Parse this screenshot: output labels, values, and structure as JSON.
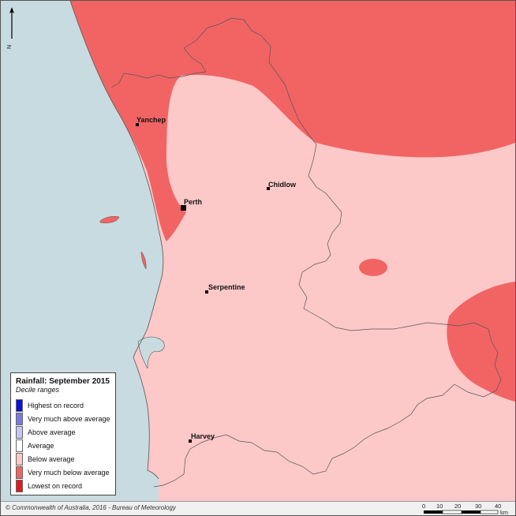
{
  "legend": {
    "title": "Rainfall: September 2015",
    "subtitle": "Decile ranges",
    "items": [
      {
        "label": "Highest on record",
        "color": "#1010d8"
      },
      {
        "label": "Very much above average",
        "color": "#7878e8"
      },
      {
        "label": "Above average",
        "color": "#c6c6f4"
      },
      {
        "label": "Average",
        "color": "#ffffff"
      },
      {
        "label": "Below average",
        "color": "#fcc8c8"
      },
      {
        "label": "Very much below average",
        "color": "#f26464"
      },
      {
        "label": "Lowest on record",
        "color": "#e01a1a"
      }
    ]
  },
  "towns": [
    {
      "name": "Yanchep"
    },
    {
      "name": "Perth"
    },
    {
      "name": "Chidlow"
    },
    {
      "name": "Serpentine"
    },
    {
      "name": "Harvey"
    }
  ],
  "north_label": "N",
  "copyright": "© Commonwealth of Australia, 2016 - Bureau of Meteorology",
  "scale_bar": {
    "ticks": [
      "0",
      "10",
      "20",
      "30",
      "40"
    ],
    "unit": "km"
  },
  "colors": {
    "ocean": "#c8dbe0",
    "below_average": "#fcc8c8",
    "very_much_below_average": "#f26464"
  }
}
